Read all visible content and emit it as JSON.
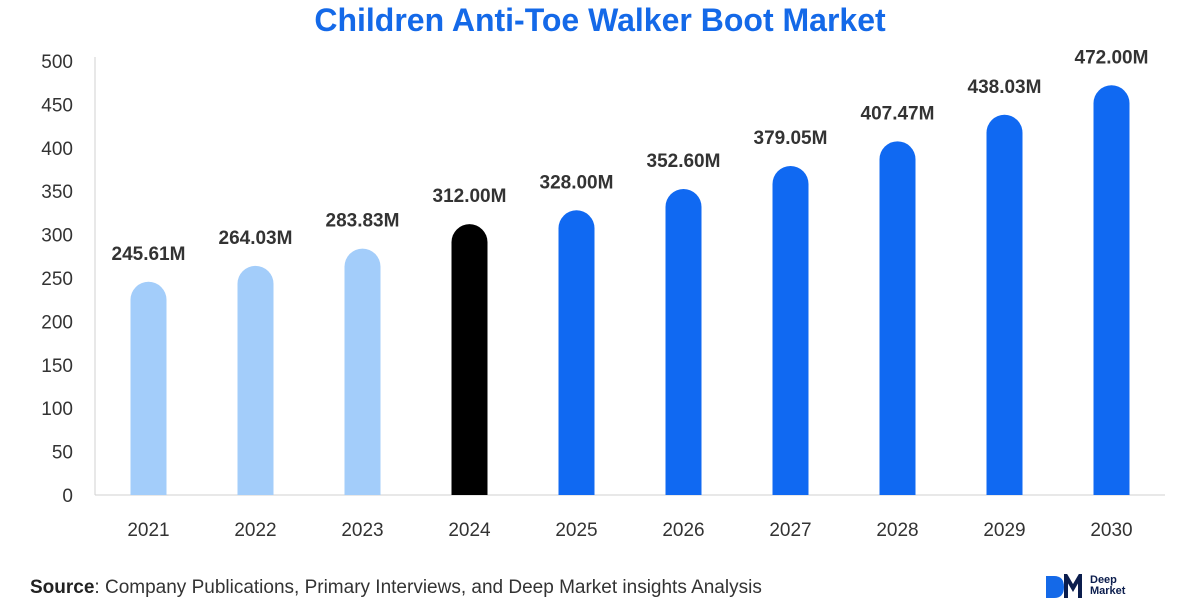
{
  "chart_data": {
    "type": "bar",
    "title": "Children Anti-Toe Walker Boot Market",
    "categories": [
      "2021",
      "2022",
      "2023",
      "2024",
      "2025",
      "2026",
      "2027",
      "2028",
      "2029",
      "2030"
    ],
    "values": [
      245.61,
      264.03,
      283.83,
      312.0,
      328.0,
      352.6,
      379.05,
      407.47,
      438.03,
      472.0
    ],
    "data_labels": [
      "245.61M",
      "264.03M",
      "283.83M",
      "312.00M",
      "328.00M",
      "352.60M",
      "379.05M",
      "407.47M",
      "438.03M",
      "472.00M"
    ],
    "bar_colors": [
      "#a3cdfa",
      "#a3cdfa",
      "#a3cdfa",
      "#000000",
      "#1069f2",
      "#1069f2",
      "#1069f2",
      "#1069f2",
      "#1069f2",
      "#1069f2"
    ],
    "ylim": [
      0,
      500
    ],
    "yticks": [
      0,
      50,
      100,
      150,
      200,
      250,
      300,
      350,
      400,
      450,
      500
    ],
    "xlabel": "",
    "ylabel": "",
    "grid": false,
    "title_color": "#1469e8"
  },
  "footer": {
    "source_label": "Source",
    "source_text": ": Company Publications, Primary Interviews, and Deep Market insights Analysis"
  },
  "logo": {
    "line1": "Deep",
    "line2": "Market"
  }
}
